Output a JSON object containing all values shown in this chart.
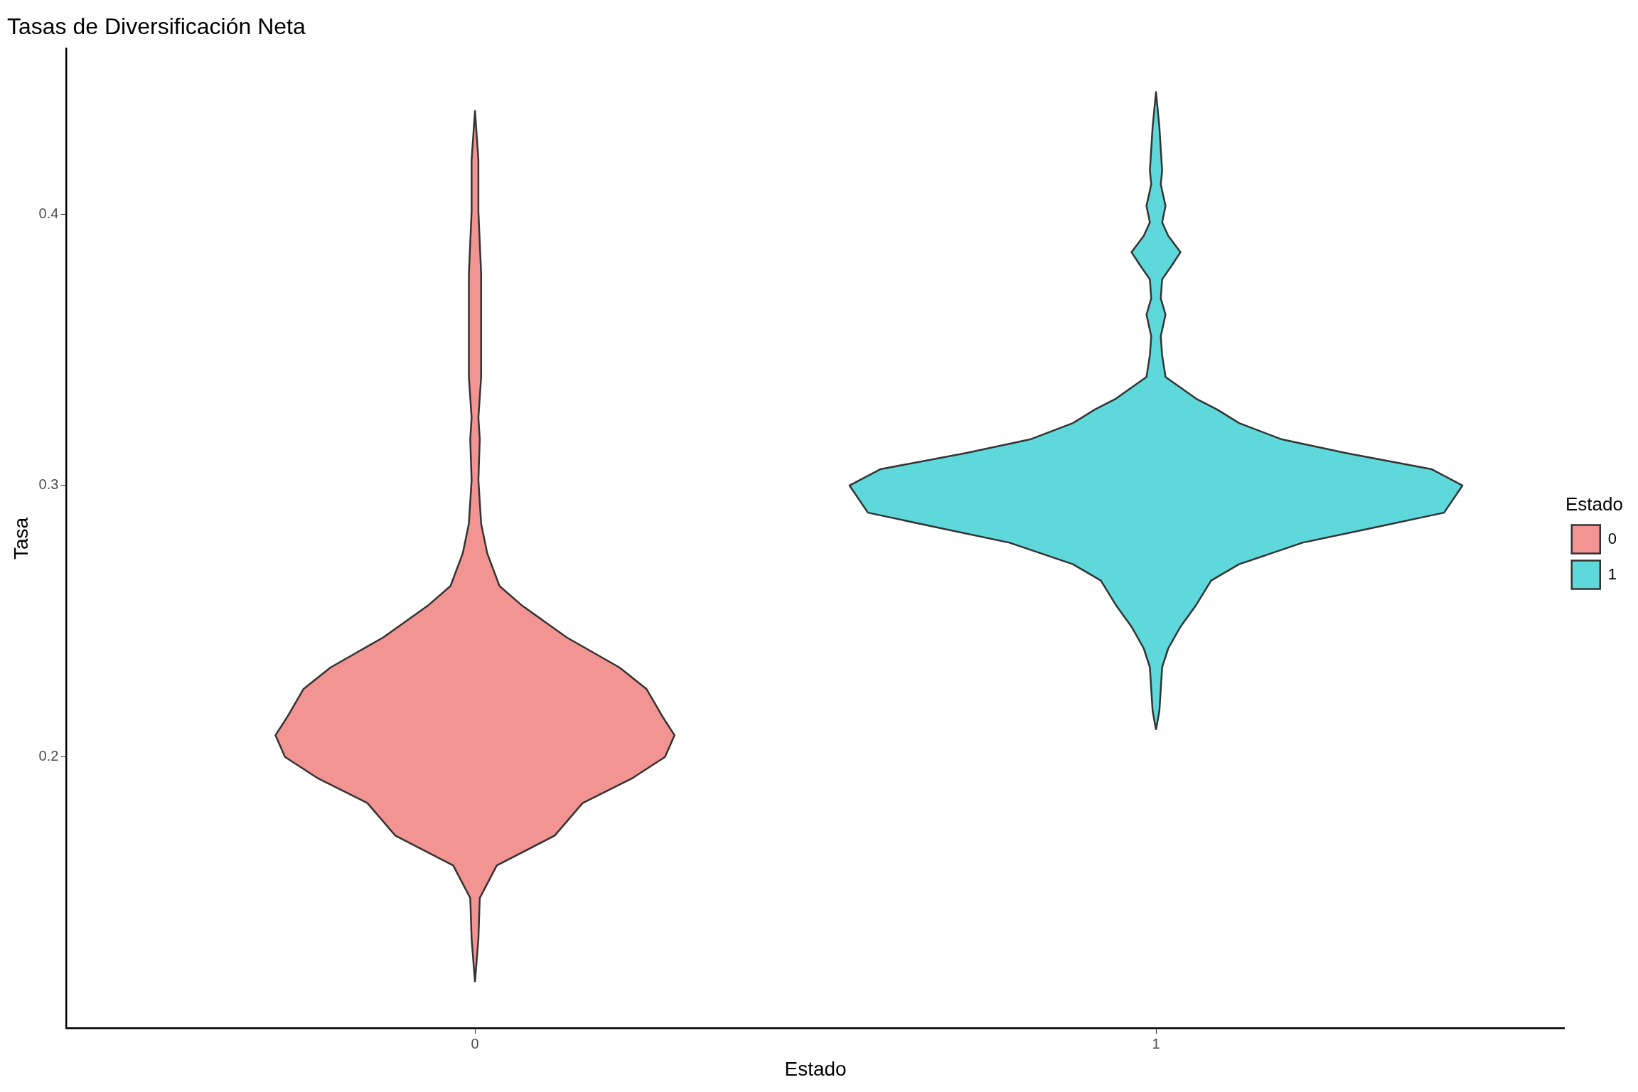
{
  "chart_data": {
    "type": "area",
    "title": "Tasas de Diversificación Neta",
    "xlabel": "Estado",
    "ylabel": "Tasa",
    "legend_title": "Estado",
    "legend": "right",
    "grid": false,
    "xlim": [
      -0.6,
      1.6
    ],
    "xticks": [
      0,
      1
    ],
    "ylim": [
      0.1,
      0.461
    ],
    "yticks": [
      0.2,
      0.3,
      0.4
    ],
    "series": [
      {
        "name": "0",
        "color": "#f29492",
        "x": [
          0,
          0.005,
          0.007,
          0.032,
          0.117,
          0.158,
          0.23,
          0.279,
          0.293,
          0.275,
          0.252,
          0.212,
          0.135,
          0.068,
          0.036,
          0.018,
          0.009,
          0.005,
          0.007,
          0.005,
          0.009,
          0.009,
          0.005,
          0.005,
          0,
          -0.005,
          -0.005,
          -0.009,
          -0.009,
          -0.005,
          -0.007,
          -0.005,
          -0.009,
          -0.018,
          -0.036,
          -0.068,
          -0.135,
          -0.212,
          -0.252,
          -0.275,
          -0.293,
          -0.279,
          -0.23,
          -0.158,
          -0.117,
          -0.032,
          -0.007,
          -0.005
        ],
        "values": [
          0.117,
          0.133,
          0.148,
          0.16,
          0.171,
          0.183,
          0.192,
          0.2,
          0.208,
          0.215,
          0.225,
          0.233,
          0.244,
          0.256,
          0.263,
          0.275,
          0.286,
          0.302,
          0.317,
          0.325,
          0.34,
          0.378,
          0.401,
          0.42,
          0.438,
          0.42,
          0.401,
          0.378,
          0.34,
          0.325,
          0.317,
          0.302,
          0.286,
          0.275,
          0.263,
          0.256,
          0.244,
          0.233,
          0.225,
          0.215,
          0.208,
          0.2,
          0.192,
          0.183,
          0.171,
          0.16,
          0.148,
          0.133
        ]
      },
      {
        "name": "1",
        "color": "#5ed8da",
        "x": [
          1,
          1.005,
          1.007,
          1.009,
          1.018,
          1.036,
          1.059,
          1.081,
          1.122,
          1.216,
          1.311,
          1.423,
          1.45,
          1.405,
          1.279,
          1.185,
          1.122,
          1.09,
          1.059,
          1.014,
          1.009,
          1.007,
          1.014,
          1.007,
          1.009,
          1.023,
          1.036,
          1.018,
          1.009,
          1.014,
          1.007,
          1.009,
          1.005,
          1,
          0.995,
          0.991,
          0.993,
          0.986,
          0.991,
          0.982,
          0.964,
          0.977,
          0.991,
          0.993,
          0.986,
          0.993,
          0.991,
          0.986,
          0.941,
          0.91,
          0.878,
          0.815,
          0.721,
          0.595,
          0.55,
          0.577,
          0.689,
          0.784,
          0.878,
          0.919,
          0.941,
          0.964,
          0.982,
          0.991,
          0.993,
          0.995
        ],
        "values": [
          0.21,
          0.217,
          0.225,
          0.233,
          0.24,
          0.248,
          0.256,
          0.265,
          0.271,
          0.279,
          0.284,
          0.29,
          0.3,
          0.306,
          0.312,
          0.317,
          0.323,
          0.328,
          0.332,
          0.34,
          0.348,
          0.355,
          0.363,
          0.369,
          0.376,
          0.381,
          0.386,
          0.392,
          0.397,
          0.403,
          0.411,
          0.416,
          0.432,
          0.445,
          0.432,
          0.416,
          0.411,
          0.403,
          0.397,
          0.392,
          0.386,
          0.381,
          0.376,
          0.369,
          0.363,
          0.355,
          0.348,
          0.34,
          0.332,
          0.328,
          0.323,
          0.317,
          0.312,
          0.306,
          0.3,
          0.29,
          0.284,
          0.279,
          0.271,
          0.265,
          0.256,
          0.248,
          0.24,
          0.233,
          0.225,
          0.217
        ]
      }
    ]
  }
}
